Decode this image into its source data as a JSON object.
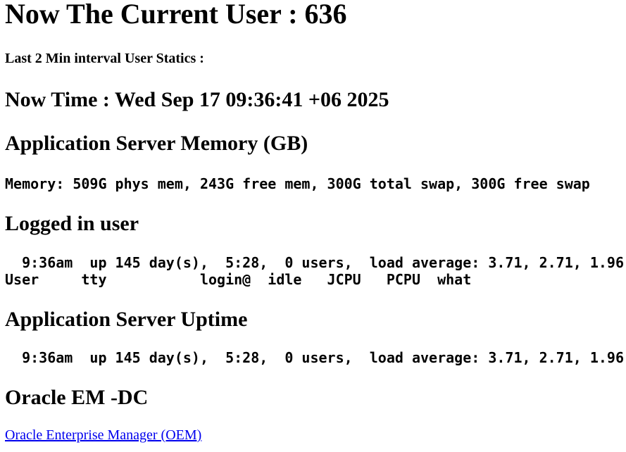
{
  "page": {
    "title": "Now The Current User : 636",
    "subtitle": "Last 2 Min interval User Statics :",
    "sections": {
      "now_time": {
        "heading": "Now Time : Wed Sep 17 09:36:41 +06 2025"
      },
      "memory": {
        "heading": "Application Server Memory (GB)",
        "output": "Memory: 509G phys mem, 243G free mem, 300G total swap, 300G free swap"
      },
      "logged_in": {
        "heading": "Logged in user",
        "output": "  9:36am  up 145 day(s),  5:28,  0 users,  load average: 3.71, 2.71, 1.96\nUser     tty           login@  idle   JCPU   PCPU  what"
      },
      "uptime": {
        "heading": "Application Server Uptime",
        "output": "  9:36am  up 145 day(s),  5:28,  0 users,  load average: 3.71, 2.71, 1.96"
      },
      "oracle": {
        "heading": "Oracle EM -DC",
        "link_label": "Oracle Enterprise Manager (OEM)"
      }
    },
    "colors": {
      "background": "#FFFFFF",
      "text": "#000000",
      "link": "#0000EE"
    }
  }
}
